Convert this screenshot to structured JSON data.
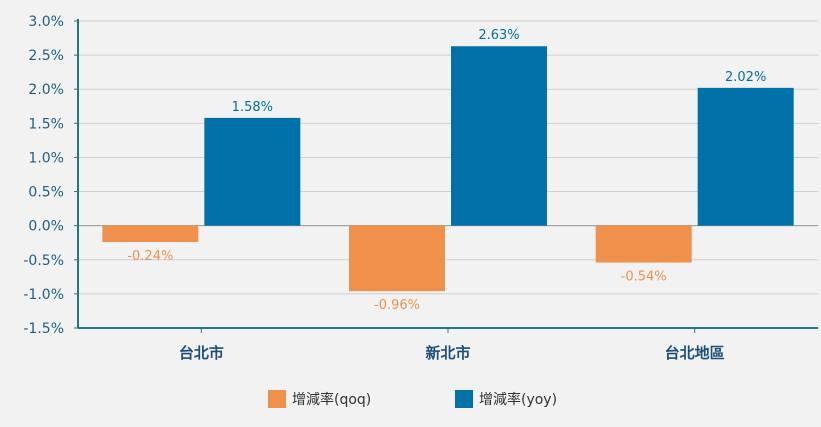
{
  "chart_data": {
    "type": "bar",
    "categories": [
      "台北市",
      "新北市",
      "台北地區"
    ],
    "series": [
      {
        "name": "增減率(qoq)",
        "values": [
          -0.24,
          -0.96,
          -0.54
        ],
        "labels": [
          "-0.24%",
          "-0.96%",
          "-0.54%"
        ],
        "color": "#f0914b"
      },
      {
        "name": "增減率(yoy)",
        "values": [
          1.58,
          2.63,
          2.02
        ],
        "labels": [
          "1.58%",
          "2.63%",
          "2.02%"
        ],
        "color": "#0070a8"
      }
    ],
    "ylim": [
      -1.5,
      3.0
    ],
    "yticks": [
      3.0,
      2.5,
      2.0,
      1.5,
      1.0,
      0.5,
      0.0,
      -0.5,
      -1.0,
      -1.5
    ],
    "ytick_labels": [
      "3.0%",
      "2.5%",
      "2.0%",
      "1.5%",
      "1.0%",
      "0.5%",
      "0.0%",
      "-0.5%",
      "-1.0%",
      "-1.5%"
    ],
    "grid": true,
    "legend": "bottom",
    "title": "",
    "xlabel": "",
    "ylabel": "",
    "colors": {
      "axis": "#1d7a80",
      "grid": "#cfcfcf",
      "tick_text": "#1d5f8a",
      "category_text": "#1d4f7a"
    }
  }
}
